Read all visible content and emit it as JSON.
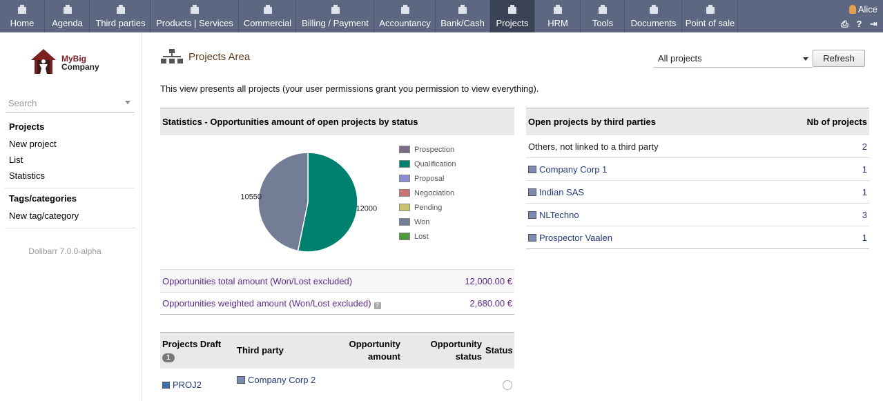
{
  "nav": {
    "tabs": [
      {
        "label": "Home",
        "icon": "home-icon"
      },
      {
        "label": "Agenda",
        "icon": "agenda-icon"
      },
      {
        "label": "Third parties",
        "icon": "company-icon"
      },
      {
        "label": "Products | Services",
        "icon": "products-icon"
      },
      {
        "label": "Commercial",
        "icon": "commercial-icon"
      },
      {
        "label": "Billing / Payment",
        "icon": "billing-icon"
      },
      {
        "label": "Accountancy",
        "icon": "accountancy-icon"
      },
      {
        "label": "Bank/Cash",
        "icon": "bank-icon"
      },
      {
        "label": "Projects",
        "icon": "projects-icon",
        "active": true
      },
      {
        "label": "HRM",
        "icon": "hrm-icon"
      },
      {
        "label": "Tools",
        "icon": "tools-icon"
      },
      {
        "label": "Documents",
        "icon": "documents-icon"
      },
      {
        "label": "Point of sale",
        "icon": "pos-icon"
      }
    ],
    "user": "Alice"
  },
  "sidebar": {
    "logo_line1": "MyBig",
    "logo_line2": "Company",
    "search_placeholder": "Search",
    "menu1": {
      "head": "Projects",
      "items": [
        "New project",
        "List",
        "Statistics"
      ]
    },
    "menu2": {
      "head": "Tags/categories",
      "items": [
        "New tag/category"
      ]
    },
    "version": "Dolibarr 7.0.0-alpha"
  },
  "main": {
    "title": "Projects Area",
    "select_value": "All projects",
    "refresh_label": "Refresh",
    "intro": "This view presents all projects (your user permissions grant you permission to view everything).",
    "stats": {
      "title": "Statistics - Opportunities amount of open projects by status",
      "total_label": "Opportunities total amount (Won/Lost excluded)",
      "total_value": "12,000.00 €",
      "weighted_label": "Opportunities weighted amount (Won/Lost excluded)",
      "weighted_value": "2,680.00 €"
    },
    "draft": {
      "col_project": "Projects Draft",
      "count": "1",
      "col_third": "Third party",
      "col_amount": "Opportunity amount",
      "col_status": "Opportunity status",
      "col_state": "Status",
      "rows": [
        {
          "ref": "PROJ2",
          "third": "Company Corp 2"
        }
      ]
    },
    "thirdparties": {
      "title": "Open projects by third parties",
      "col_nb": "Nb of projects",
      "rows": [
        {
          "name": "Others, not linked to a third party",
          "nb": "2",
          "link": false
        },
        {
          "name": "Company Corp 1",
          "nb": "1",
          "link": true
        },
        {
          "name": "Indian SAS",
          "nb": "1",
          "link": true
        },
        {
          "name": "NLTechno",
          "nb": "3",
          "link": true
        },
        {
          "name": "Prospector Vaalen",
          "nb": "1",
          "link": true
        }
      ]
    }
  },
  "chart_data": {
    "type": "pie",
    "title": "",
    "categories": [
      "Prospection",
      "Qualification",
      "Proposal",
      "Negociation",
      "Pending",
      "Won",
      "Lost"
    ],
    "colors": [
      "#7e6a86",
      "#00806e",
      "#8c8cd4",
      "#c87474",
      "#c8c470",
      "#737d96",
      "#4e9a3a"
    ],
    "values": [
      0,
      12000,
      0,
      0,
      0,
      10550,
      0
    ],
    "slice_labels": [
      "",
      "12000",
      "",
      "",
      "",
      "10550",
      ""
    ]
  }
}
